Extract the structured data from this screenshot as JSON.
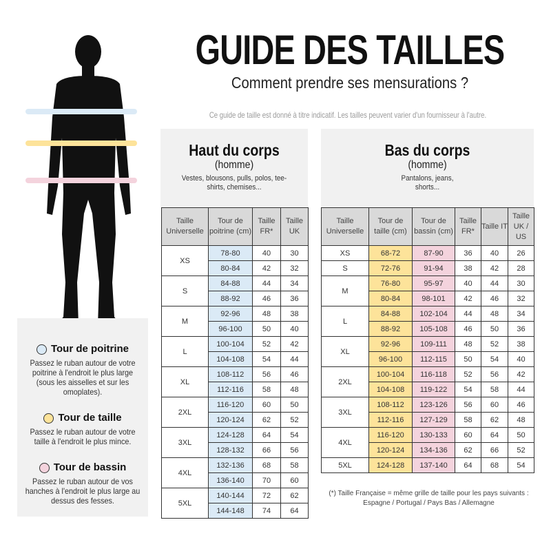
{
  "title": "GUIDE DES TAILLES",
  "subtitle": "Comment prendre ses mensurations ?",
  "disclaimer": "Ce guide de taille est donné à titre indicatif. Les tailles peuvent varier d'un fournisseur à l'autre.",
  "colors": {
    "poitrine": "#dbeaf6",
    "taille": "#fde39a",
    "bassin": "#f4d3dd"
  },
  "legend": [
    {
      "title": "Tour de poitrine",
      "text": "Passez le ruban autour de votre poitrine à l'endroit le plus large (sous les aisselles et sur les omoplates).",
      "color": "#dbeaf6"
    },
    {
      "title": "Tour de taille",
      "text": "Passez le ruban autour de votre taille à l'endroit le plus mince.",
      "color": "#fde39a"
    },
    {
      "title": "Tour de bassin",
      "text": "Passez le ruban autour de vos hanches à l'endroit le plus large au dessus des fesses.",
      "color": "#f4d3dd"
    }
  ],
  "haut": {
    "title": "Haut du corps",
    "subtitle": "(homme)",
    "desc": "Vestes, blousons, pulls, polos, tee-shirts, chemises...",
    "headers": [
      "Taille Universelle",
      "Tour de poitrine (cm)",
      "Taille FR*",
      "Taille UK"
    ],
    "colClasses": [
      "",
      "blue",
      "",
      ""
    ],
    "rows": [
      {
        "size": "XS",
        "entries": [
          [
            "78-80",
            "40",
            "30"
          ],
          [
            "80-84",
            "42",
            "32"
          ]
        ]
      },
      {
        "size": "S",
        "entries": [
          [
            "84-88",
            "44",
            "34"
          ],
          [
            "88-92",
            "46",
            "36"
          ]
        ]
      },
      {
        "size": "M",
        "entries": [
          [
            "92-96",
            "48",
            "38"
          ],
          [
            "96-100",
            "50",
            "40"
          ]
        ]
      },
      {
        "size": "L",
        "entries": [
          [
            "100-104",
            "52",
            "42"
          ],
          [
            "104-108",
            "54",
            "44"
          ]
        ]
      },
      {
        "size": "XL",
        "entries": [
          [
            "108-112",
            "56",
            "46"
          ],
          [
            "112-116",
            "58",
            "48"
          ]
        ]
      },
      {
        "size": "2XL",
        "entries": [
          [
            "116-120",
            "60",
            "50"
          ],
          [
            "120-124",
            "62",
            "52"
          ]
        ]
      },
      {
        "size": "3XL",
        "entries": [
          [
            "124-128",
            "64",
            "54"
          ],
          [
            "128-132",
            "66",
            "56"
          ]
        ]
      },
      {
        "size": "4XL",
        "entries": [
          [
            "132-136",
            "68",
            "58"
          ],
          [
            "136-140",
            "70",
            "60"
          ]
        ]
      },
      {
        "size": "5XL",
        "entries": [
          [
            "140-144",
            "72",
            "62"
          ],
          [
            "144-148",
            "74",
            "64"
          ]
        ]
      }
    ]
  },
  "bas": {
    "title": "Bas du corps",
    "subtitle": "(homme)",
    "desc": "Pantalons, jeans, shorts...",
    "headers": [
      "Taille Universelle",
      "Tour de taille (cm)",
      "Tour de bassin (cm)",
      "Taille FR*",
      "Taille IT",
      "Taille UK / US"
    ],
    "colClasses": [
      "",
      "yellow",
      "pink",
      "",
      "",
      ""
    ],
    "rows": [
      {
        "size": "XS",
        "entries": [
          [
            "68-72",
            "87-90",
            "36",
            "40",
            "26"
          ]
        ]
      },
      {
        "size": "S",
        "entries": [
          [
            "72-76",
            "91-94",
            "38",
            "42",
            "28"
          ]
        ]
      },
      {
        "size": "M",
        "entries": [
          [
            "76-80",
            "95-97",
            "40",
            "44",
            "30"
          ],
          [
            "80-84",
            "98-101",
            "42",
            "46",
            "32"
          ]
        ]
      },
      {
        "size": "L",
        "entries": [
          [
            "84-88",
            "102-104",
            "44",
            "48",
            "34"
          ],
          [
            "88-92",
            "105-108",
            "46",
            "50",
            "36"
          ]
        ]
      },
      {
        "size": "XL",
        "entries": [
          [
            "92-96",
            "109-111",
            "48",
            "52",
            "38"
          ],
          [
            "96-100",
            "112-115",
            "50",
            "54",
            "40"
          ]
        ]
      },
      {
        "size": "2XL",
        "entries": [
          [
            "100-104",
            "116-118",
            "52",
            "56",
            "42"
          ],
          [
            "104-108",
            "119-122",
            "54",
            "58",
            "44"
          ]
        ]
      },
      {
        "size": "3XL",
        "entries": [
          [
            "108-112",
            "123-126",
            "56",
            "60",
            "46"
          ],
          [
            "112-116",
            "127-129",
            "58",
            "62",
            "48"
          ]
        ]
      },
      {
        "size": "4XL",
        "entries": [
          [
            "116-120",
            "130-133",
            "60",
            "64",
            "50"
          ],
          [
            "120-124",
            "134-136",
            "62",
            "66",
            "52"
          ]
        ]
      },
      {
        "size": "5XL",
        "entries": [
          [
            "124-128",
            "137-140",
            "64",
            "68",
            "54"
          ]
        ]
      }
    ]
  },
  "footnote": {
    "line1": "(*) Taille Française = même grille de taille pour les pays suivants :",
    "line2": "Espagne / Portugal / Pays Bas / Allemagne"
  }
}
